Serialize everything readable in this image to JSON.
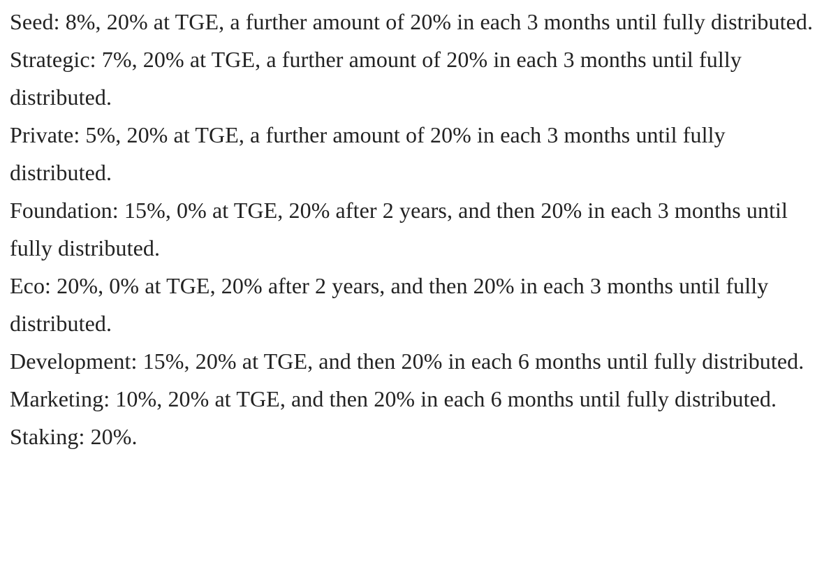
{
  "background_color": "#ffffff",
  "text_color": "#222222",
  "content": {
    "paragraphs": [
      "Seed: 8%, 20% at TGE, a further amount of 20% in each 3 months until fully distributed.",
      "Strategic: 7%, 20% at TGE, a further amount of 20% in each 3 months until fully distributed.",
      "Private: 5%, 20% at TGE, a further amount of 20% in each 3 months until fully distributed.",
      "Foundation: 15%, 0% at TGE, 20% after 2 years, and then 20% in each 3 months until fully distributed.",
      "Eco: 20%, 0% at TGE, 20% after 2 years, and then 20% in each 3 months until fully distributed.",
      "Development: 15%, 20% at TGE, and then 20% in each 6 months until fully distributed.",
      "Marketing: 10%, 20% at TGE, and then 20% in each 6 months until fully distributed.",
      "Staking: 20%."
    ]
  }
}
